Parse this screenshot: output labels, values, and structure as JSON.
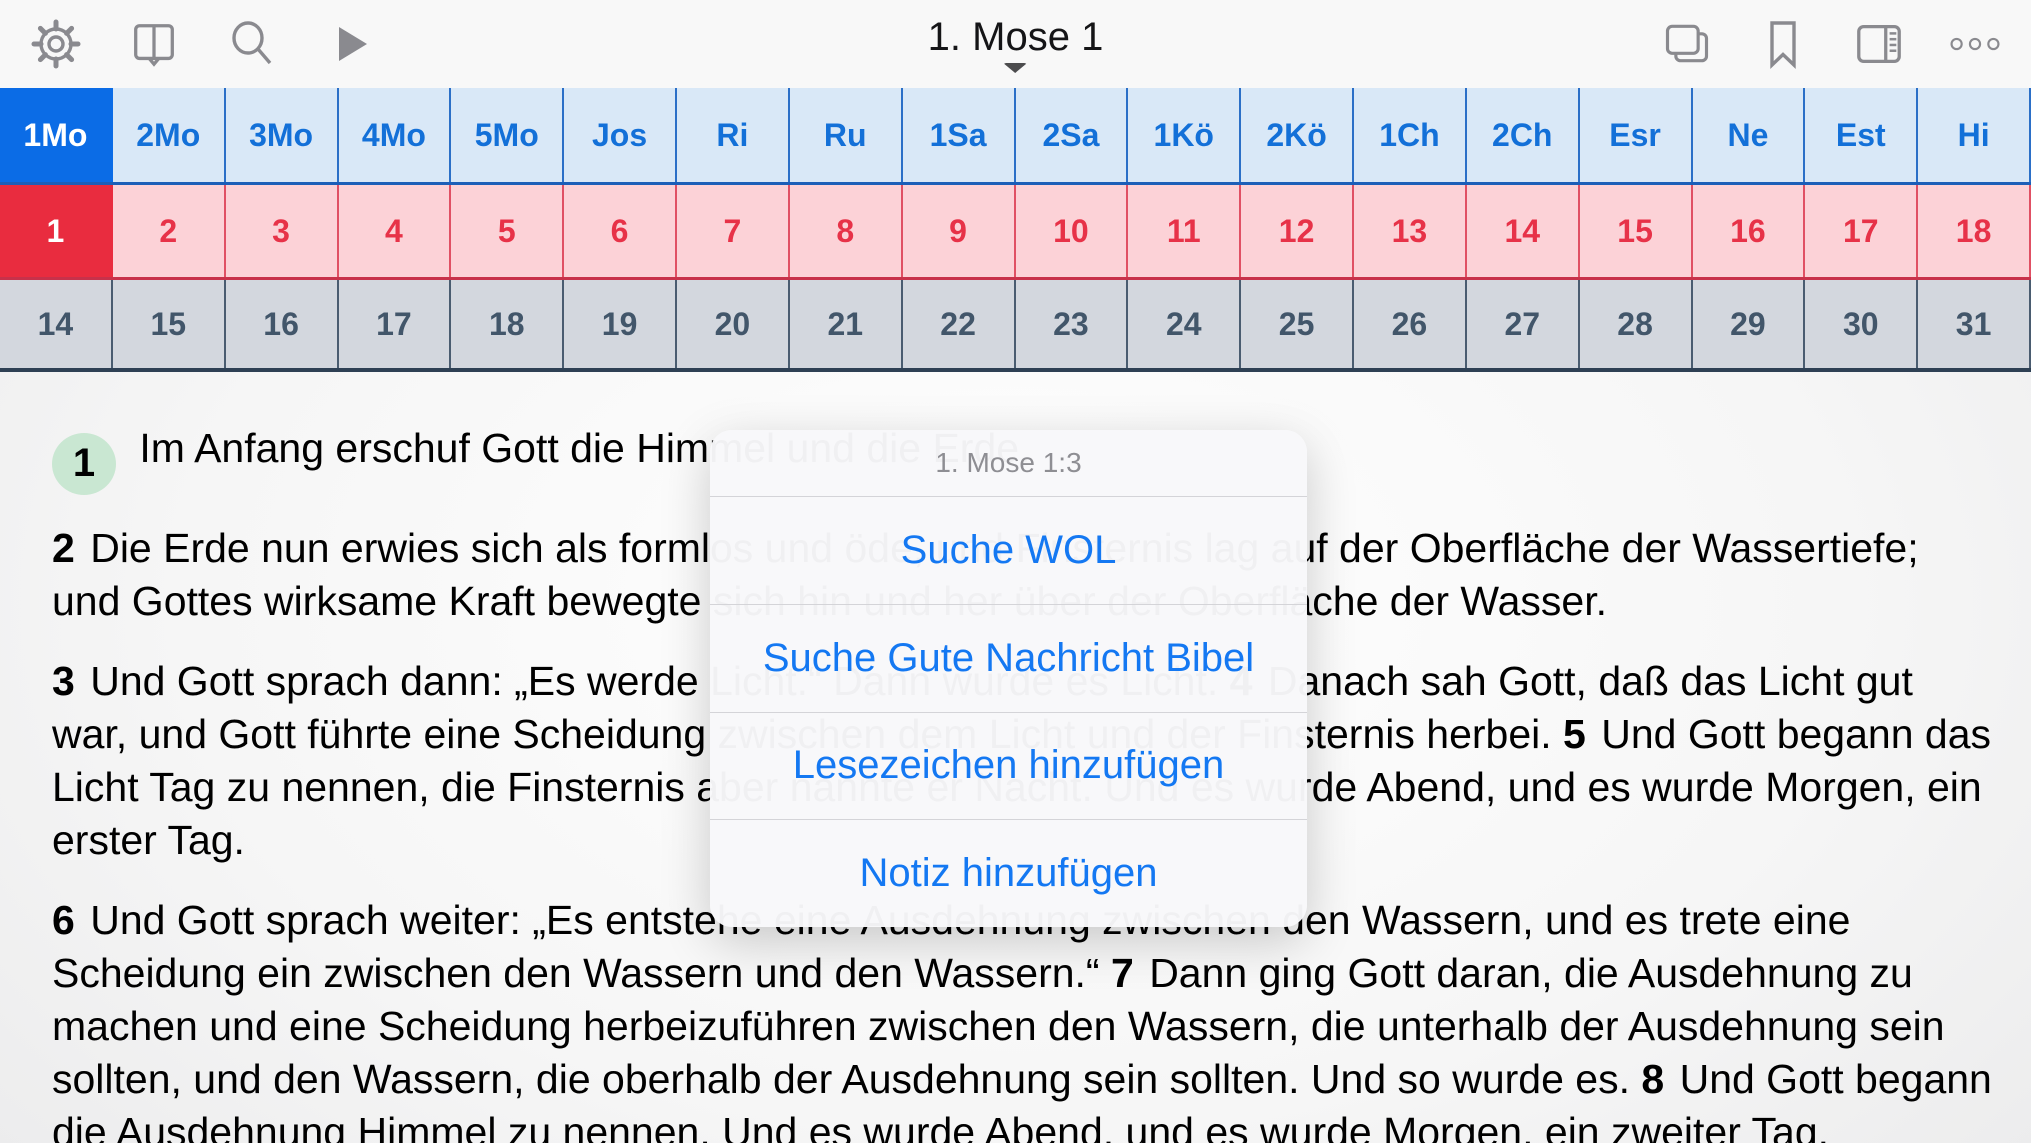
{
  "toolbar": {
    "title": "1. Mose 1",
    "left_icons": [
      "settings-gear-icon",
      "open-book-icon",
      "search-icon",
      "play-icon"
    ],
    "right_icons": [
      "pages-copy-icon",
      "bookmark-icon",
      "reading-pane-icon",
      "more-ellipsis-icon"
    ]
  },
  "book_nav": {
    "items": [
      "1Mo",
      "2Mo",
      "3Mo",
      "4Mo",
      "5Mo",
      "Jos",
      "Ri",
      "Ru",
      "1Sa",
      "2Sa",
      "1Kö",
      "2Kö",
      "1Ch",
      "2Ch",
      "Esr",
      "Ne",
      "Est",
      "Hi"
    ],
    "selected": "1Mo"
  },
  "chapter_nav": {
    "items": [
      "1",
      "2",
      "3",
      "4",
      "5",
      "6",
      "7",
      "8",
      "9",
      "10",
      "11",
      "12",
      "13",
      "14",
      "15",
      "16",
      "17",
      "18"
    ],
    "selected": "1"
  },
  "verse_nav": {
    "items": [
      "14",
      "15",
      "16",
      "17",
      "18",
      "19",
      "20",
      "21",
      "22",
      "23",
      "24",
      "25",
      "26",
      "27",
      "28",
      "29",
      "30",
      "31"
    ]
  },
  "content": {
    "paragraphs": [
      {
        "segments": [
          {
            "verse": "1",
            "badge": true,
            "text": "Im Anfang erschuf Gott die Himmel und die Erde."
          }
        ]
      },
      {
        "segments": [
          {
            "verse": "2",
            "text": "Die Erde nun erwies sich als formlos und öde, und Finsternis lag auf der Oberfläche der Wassertiefe; und Gottes wirksame Kraft bewegte sich hin und her über der Oberfläche der Wasser."
          }
        ]
      },
      {
        "segments": [
          {
            "verse": "3",
            "text": "Und Gott sprach dann: „Es werde Licht.“ Dann wurde es Licht."
          },
          {
            "verse": "4",
            "text": "Danach sah Gott, daß das Licht gut war, und Gott führte eine Scheidung zwischen dem Licht und der Finsternis herbei."
          },
          {
            "verse": "5",
            "text": "Und Gott begann das Licht Tag zu nennen, die Finsternis aber nannte er Nacht. Und es wurde Abend, und es wurde Morgen, ein erster Tag."
          }
        ]
      },
      {
        "segments": [
          {
            "verse": "6",
            "text": "Und Gott sprach weiter: „Es entstehe eine Ausdehnung zwischen den Wassern, und es trete eine Scheidung ein zwischen den Wassern und den Wassern.“"
          },
          {
            "verse": "7",
            "text": "Dann ging Gott daran, die Ausdehnung zu machen und eine Scheidung herbeizuführen zwischen den Wassern, die unterhalb der Ausdehnung sein sollten, und den Wassern, die oberhalb der Ausdehnung sein sollten. Und so wurde es."
          },
          {
            "verse": "8",
            "text": "Und Gott begann die Ausdehnung Himmel zu nennen. Und es wurde Abend, und es wurde Morgen, ein zweiter Tag."
          }
        ]
      }
    ]
  },
  "popup": {
    "title": "1. Mose 1:3",
    "items": [
      "Suche WOL",
      "Suche Gute Nachricht Bibel",
      "Lesezeichen hinzufügen",
      "Notiz hinzufügen"
    ]
  },
  "colors": {
    "book_selected": "#0b6ce6",
    "book_row_bg": "#d9e8f7",
    "book_text": "#1370d8",
    "chapter_selected": "#e92c3f",
    "chapter_row_bg": "#fcd2d7",
    "chapter_text": "#e73248",
    "verse_row_bg": "#d3d7de",
    "verse_text": "#42566a",
    "popup_link": "#1478f2",
    "verse_badge_green": "#c9e7d2",
    "toolbar_icon_gray": "#8a8a8f"
  }
}
